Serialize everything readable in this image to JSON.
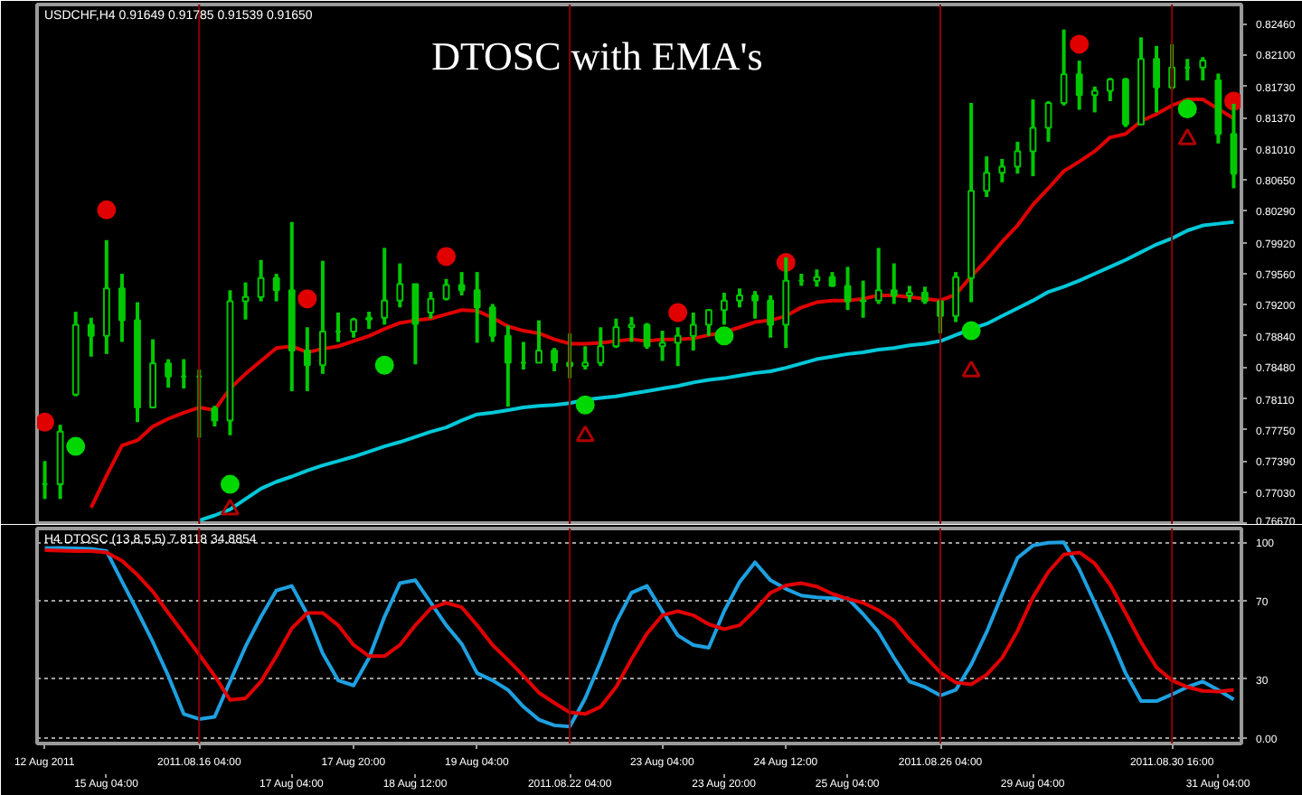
{
  "chart_data": [
    {
      "type": "candlestick",
      "title": "DTOSC with EMA's",
      "annotations": [
        "USDCHF,H4 0.91649 0.91785 0.91539 0.91650"
      ],
      "categories": [
        "12 Aug 2011",
        null,
        null,
        null,
        "15 Aug 04:00",
        null,
        null,
        null,
        null,
        null,
        "2011.08.16 04:00",
        null,
        null,
        null,
        null,
        null,
        "17 Aug 04:00",
        null,
        null,
        null,
        "17 Aug 20:00",
        null,
        null,
        null,
        "18 Aug 12:00",
        null,
        null,
        null,
        "19 Aug 04:00",
        null,
        null,
        null,
        null,
        null,
        "2011.08.22 04:00",
        null,
        null,
        null,
        null,
        null,
        "23 Aug 04:00",
        null,
        null,
        null,
        "23 Aug 20:00",
        null,
        null,
        null,
        "24 Aug 12:00",
        null,
        null,
        null,
        "25 Aug 04:00",
        null,
        null,
        null,
        null,
        null,
        "2011.08.26 04:00",
        null,
        null,
        null,
        null,
        null,
        "29 Aug 04:00",
        null,
        null,
        null,
        null,
        null,
        null,
        null,
        null,
        "2011.08.30 16:00",
        null,
        null,
        "31 Aug 04:00",
        null
      ],
      "color": "#00c800",
      "ohlc": [
        [
          0.7712,
          0.7739,
          0.7695,
          0.7712
        ],
        [
          0.7712,
          0.7781,
          0.7695,
          0.7773
        ],
        [
          0.7816,
          0.7912,
          0.7814,
          0.7897
        ],
        [
          0.7897,
          0.7905,
          0.786,
          0.7884
        ],
        [
          0.7884,
          0.7995,
          0.7863,
          0.7939
        ],
        [
          0.7939,
          0.7956,
          0.7877,
          0.7902
        ],
        [
          0.7902,
          0.7923,
          0.7784,
          0.7801
        ],
        [
          0.7801,
          0.788,
          0.78,
          0.7852
        ],
        [
          0.7852,
          0.7857,
          0.7824,
          0.7837
        ],
        [
          0.7837,
          0.7857,
          0.7823,
          0.7837
        ],
        [
          0.7837,
          0.7845,
          0.7766,
          0.7837
        ],
        [
          0.78,
          0.7803,
          0.7779,
          0.7786
        ],
        [
          0.7786,
          0.7937,
          0.7769,
          0.7924
        ],
        [
          0.7924,
          0.7946,
          0.7903,
          0.7929
        ],
        [
          0.7929,
          0.7972,
          0.7924,
          0.7951
        ],
        [
          0.7951,
          0.7956,
          0.7924,
          0.7937
        ],
        [
          0.7937,
          0.8016,
          0.782,
          0.7867
        ],
        [
          0.7867,
          0.7894,
          0.782,
          0.785
        ],
        [
          0.785,
          0.7971,
          0.784,
          0.7889
        ],
        [
          0.7889,
          0.7911,
          0.7877,
          0.7889
        ],
        [
          0.7889,
          0.7905,
          0.7882,
          0.7903
        ],
        [
          0.7903,
          0.7912,
          0.7892,
          0.7905
        ],
        [
          0.7905,
          0.7986,
          0.7897,
          0.7925
        ],
        [
          0.7925,
          0.7968,
          0.7917,
          0.7944
        ],
        [
          0.7944,
          0.7944,
          0.7851,
          0.7898
        ],
        [
          0.7911,
          0.7935,
          0.7904,
          0.7927
        ],
        [
          0.7927,
          0.795,
          0.7925,
          0.7943
        ],
        [
          0.7943,
          0.7958,
          0.7931,
          0.7937
        ],
        [
          0.7937,
          0.7958,
          0.7876,
          0.7917
        ],
        [
          0.7917,
          0.7921,
          0.7877,
          0.7884
        ],
        [
          0.7884,
          0.7896,
          0.7802,
          0.7853
        ],
        [
          0.7853,
          0.7877,
          0.7845,
          0.7853
        ],
        [
          0.7853,
          0.7902,
          0.7853,
          0.7867
        ],
        [
          0.7867,
          0.787,
          0.7843,
          0.7853
        ],
        [
          0.7853,
          0.7887,
          0.7835,
          0.7849
        ],
        [
          0.7849,
          0.7872,
          0.7845,
          0.7853
        ],
        [
          0.7853,
          0.7894,
          0.7849,
          0.7872
        ],
        [
          0.7872,
          0.7904,
          0.787,
          0.7894
        ],
        [
          0.7894,
          0.7906,
          0.7877,
          0.7897
        ],
        [
          0.7897,
          0.7899,
          0.7869,
          0.7872
        ],
        [
          0.7872,
          0.789,
          0.7855,
          0.7876
        ],
        [
          0.7876,
          0.7894,
          0.7849,
          0.7884
        ],
        [
          0.7884,
          0.7911,
          0.7867,
          0.7897
        ],
        [
          0.7897,
          0.7915,
          0.7884,
          0.7914
        ],
        [
          0.7914,
          0.7934,
          0.7897,
          0.7925
        ],
        [
          0.7925,
          0.7939,
          0.7917,
          0.7931
        ],
        [
          0.7931,
          0.7936,
          0.7904,
          0.7925
        ],
        [
          0.7925,
          0.7931,
          0.7882,
          0.7897
        ],
        [
          0.7897,
          0.7975,
          0.787,
          0.7948
        ],
        [
          0.7948,
          0.7956,
          0.7942,
          0.7948
        ],
        [
          0.7948,
          0.7961,
          0.7941,
          0.7952
        ],
        [
          0.7952,
          0.7958,
          0.7941,
          0.7942
        ],
        [
          0.7942,
          0.7964,
          0.7914,
          0.7924
        ],
        [
          0.7924,
          0.7948,
          0.7905,
          0.7925
        ],
        [
          0.7925,
          0.7986,
          0.7921,
          0.7937
        ],
        [
          0.7937,
          0.7968,
          0.7921,
          0.7931
        ],
        [
          0.7931,
          0.7942,
          0.7923,
          0.7934
        ],
        [
          0.7934,
          0.7941,
          0.7921,
          0.7924
        ],
        [
          0.7924,
          0.7925,
          0.7887,
          0.7907
        ],
        [
          0.7907,
          0.7958,
          0.79,
          0.7952
        ],
        [
          0.7951,
          0.8154,
          0.7923,
          0.8052
        ],
        [
          0.8052,
          0.8092,
          0.8045,
          0.8073
        ],
        [
          0.8073,
          0.8089,
          0.8062,
          0.808
        ],
        [
          0.808,
          0.8109,
          0.8072,
          0.8098
        ],
        [
          0.8098,
          0.8158,
          0.8069,
          0.8125
        ],
        [
          0.8125,
          0.8156,
          0.8109,
          0.8154
        ],
        [
          0.8154,
          0.8239,
          0.8151,
          0.8187
        ],
        [
          0.8187,
          0.8203,
          0.8146,
          0.8163
        ],
        [
          0.8163,
          0.8173,
          0.8143,
          0.8168
        ],
        [
          0.8168,
          0.8183,
          0.8156,
          0.8181
        ],
        [
          0.8181,
          0.8183,
          0.8126,
          0.8129
        ],
        [
          0.8129,
          0.823,
          0.8129,
          0.8205
        ],
        [
          0.8205,
          0.822,
          0.8143,
          0.8172
        ],
        [
          0.8172,
          0.8222,
          0.817,
          0.8195
        ],
        [
          0.8195,
          0.8205,
          0.818,
          0.8195
        ],
        [
          0.8195,
          0.8207,
          0.818,
          0.8203
        ],
        [
          0.818,
          0.8188,
          0.8107,
          0.8118
        ],
        [
          0.8118,
          0.8153,
          0.8055,
          0.8072
        ]
      ],
      "series": [
        {
          "type": "line",
          "color": "#e00000",
          "values": [
            null,
            null,
            null,
            0.7685,
            0.7722,
            0.7757,
            0.7763,
            0.7779,
            0.7788,
            0.7795,
            0.7801,
            0.7798,
            0.7823,
            0.784,
            0.7855,
            0.787,
            0.7872,
            0.7865,
            0.7869,
            0.7872,
            0.7878,
            0.7884,
            0.7892,
            0.7899,
            0.7902,
            0.7904,
            0.7909,
            0.7914,
            0.7913,
            0.7905,
            0.7895,
            0.789,
            0.7887,
            0.788,
            0.7875,
            0.7875,
            0.7876,
            0.7878,
            0.788,
            0.7878,
            0.788,
            0.788,
            0.7881,
            0.7885,
            0.7888,
            0.7894,
            0.79,
            0.7902,
            0.7907,
            0.7917,
            0.7923,
            0.7925,
            0.7925,
            0.7927,
            0.7931,
            0.7931,
            0.7929,
            0.7927,
            0.7925,
            0.7932,
            0.7953,
            0.7972,
            0.7993,
            0.8012,
            0.8036,
            0.8055,
            0.8075,
            0.8086,
            0.8098,
            0.8114,
            0.8118,
            0.8133,
            0.8141,
            0.8151,
            0.8158,
            0.8158,
            0.8147,
            0.8136
          ]
        },
        {
          "type": "line",
          "color": "#00c8d8",
          "values": [
            null,
            null,
            null,
            null,
            null,
            null,
            null,
            null,
            null,
            null,
            0.767,
            0.7676,
            0.7683,
            0.7695,
            0.7707,
            0.7715,
            0.7721,
            0.7728,
            0.7734,
            0.7739,
            0.7744,
            0.775,
            0.7756,
            0.7761,
            0.7767,
            0.7773,
            0.7778,
            0.7786,
            0.7793,
            0.7795,
            0.7798,
            0.7801,
            0.7803,
            0.7804,
            0.7806,
            0.781,
            0.7812,
            0.7814,
            0.7817,
            0.782,
            0.7823,
            0.7826,
            0.783,
            0.7833,
            0.7835,
            0.7838,
            0.7841,
            0.7843,
            0.7847,
            0.7852,
            0.7857,
            0.786,
            0.7863,
            0.7865,
            0.7868,
            0.787,
            0.7873,
            0.7875,
            0.7878,
            0.7885,
            0.7892,
            0.7898,
            0.7907,
            0.7916,
            0.7925,
            0.7935,
            0.7941,
            0.7948,
            0.7956,
            0.7964,
            0.7972,
            0.7981,
            0.799,
            0.7997,
            0.8006,
            0.8012,
            0.8014,
            0.8016
          ]
        },
        {
          "type": "scatter",
          "marker": "circle",
          "color": "#e00000",
          "values": [
            0.7784,
            null,
            null,
            null,
            0.803,
            null,
            null,
            null,
            null,
            null,
            null,
            null,
            null,
            null,
            null,
            null,
            null,
            0.7927,
            null,
            null,
            null,
            null,
            null,
            null,
            null,
            null,
            0.7976,
            null,
            null,
            null,
            null,
            null,
            null,
            null,
            null,
            null,
            null,
            null,
            null,
            null,
            null,
            0.7911,
            null,
            null,
            null,
            null,
            null,
            null,
            0.7969,
            null,
            null,
            null,
            null,
            null,
            null,
            null,
            null,
            null,
            null,
            null,
            null,
            null,
            null,
            null,
            null,
            null,
            null,
            0.8222,
            null,
            null,
            null,
            null,
            null,
            null,
            null,
            null,
            null,
            0.8156
          ]
        },
        {
          "type": "scatter",
          "marker": "circle",
          "color": "#00d800",
          "values": [
            null,
            null,
            0.7756,
            null,
            null,
            null,
            null,
            null,
            null,
            null,
            null,
            null,
            0.7712,
            null,
            null,
            null,
            null,
            null,
            null,
            null,
            null,
            null,
            0.785,
            null,
            null,
            null,
            null,
            null,
            null,
            null,
            null,
            null,
            null,
            null,
            null,
            0.7804,
            null,
            null,
            null,
            null,
            null,
            null,
            null,
            null,
            0.7884,
            null,
            null,
            null,
            null,
            null,
            null,
            null,
            null,
            null,
            null,
            null,
            null,
            null,
            null,
            null,
            0.789,
            null,
            null,
            null,
            null,
            null,
            null,
            null,
            null,
            null,
            null,
            null,
            null,
            null,
            0.8147,
            null,
            null,
            null
          ]
        },
        {
          "type": "scatter",
          "marker": "triangle",
          "color": "#b00000",
          "values": [
            null,
            null,
            null,
            null,
            null,
            null,
            null,
            null,
            null,
            null,
            null,
            null,
            0.7683,
            null,
            null,
            null,
            null,
            null,
            null,
            null,
            null,
            null,
            null,
            null,
            null,
            null,
            null,
            null,
            null,
            null,
            null,
            null,
            null,
            null,
            null,
            0.7768,
            null,
            null,
            null,
            null,
            null,
            null,
            null,
            null,
            null,
            null,
            null,
            null,
            null,
            null,
            null,
            null,
            null,
            null,
            null,
            null,
            null,
            null,
            null,
            null,
            0.7843,
            null,
            null,
            null,
            null,
            null,
            null,
            null,
            null,
            null,
            null,
            null,
            null,
            null,
            0.8112,
            null,
            null,
            null
          ]
        }
      ],
      "ylim": [
        0.7665,
        0.8268
      ],
      "yticks": [
        {
          "value": 0.8246,
          "label": "0.82460"
        },
        {
          "value": 0.821,
          "label": "0.82100"
        },
        {
          "value": 0.8173,
          "label": "0.81730"
        },
        {
          "value": 0.8137,
          "label": "0.81370"
        },
        {
          "value": 0.8101,
          "label": "0.81010"
        },
        {
          "value": 0.8065,
          "label": "0.80650"
        },
        {
          "value": 0.8029,
          "label": "0.80290"
        },
        {
          "value": 0.7992,
          "label": "0.79920"
        },
        {
          "value": 0.7956,
          "label": "0.79560"
        },
        {
          "value": 0.792,
          "label": "0.79200"
        },
        {
          "value": 0.7884,
          "label": "0.78840"
        },
        {
          "value": 0.7848,
          "label": "0.78480"
        },
        {
          "value": 0.7811,
          "label": "0.78110"
        },
        {
          "value": 0.7775,
          "label": "0.77750"
        },
        {
          "value": 0.7739,
          "label": "0.77390"
        },
        {
          "value": 0.7703,
          "label": "0.77030"
        },
        {
          "value": 0.7667,
          "label": "0.76670"
        }
      ],
      "tick_labels": "y",
      "ref_lines": [
        {
          "axis": "x",
          "value": "2011.08.16 04:00",
          "color": "#8b0000"
        },
        {
          "axis": "x",
          "value": "2011.08.22 04:00",
          "color": "#8b0000"
        },
        {
          "axis": "x",
          "value": "2011.08.26 04:00",
          "color": "#8b0000"
        },
        {
          "axis": "x",
          "value": "2011.08.30 16:00",
          "color": "#8b0000"
        }
      ]
    },
    {
      "type": "line",
      "annotations": [
        "H4 DTOSC (13,8,5,5) 7.8118 34.8854"
      ],
      "categories": [
        "12 Aug 2011",
        null,
        null,
        null,
        "15 Aug 04:00",
        null,
        null,
        null,
        null,
        null,
        "2011.08.16 04:00",
        null,
        null,
        null,
        null,
        null,
        "17 Aug 04:00",
        null,
        null,
        null,
        "17 Aug 20:00",
        null,
        null,
        null,
        "18 Aug 12:00",
        null,
        null,
        null,
        "19 Aug 04:00",
        null,
        null,
        null,
        null,
        null,
        "2011.08.22 04:00",
        null,
        null,
        null,
        null,
        null,
        "23 Aug 04:00",
        null,
        null,
        null,
        "23 Aug 20:00",
        null,
        null,
        null,
        "24 Aug 12:00",
        null,
        null,
        null,
        "25 Aug 04:00",
        null,
        null,
        null,
        null,
        null,
        "2011.08.26 04:00",
        null,
        null,
        null,
        null,
        null,
        "29 Aug 04:00",
        null,
        null,
        null,
        null,
        null,
        null,
        null,
        null,
        "2011.08.30 16:00",
        null,
        null,
        "31 Aug 04:00",
        null
      ],
      "series": [
        {
          "color": "#1ea0e0",
          "values": [
            96.9,
            97.1,
            96.8,
            96.6,
            95.4,
            79.9,
            64.7,
            48.9,
            31.6,
            12.1,
            9.5,
            10.6,
            28.7,
            46.6,
            61.8,
            75.3,
            77.6,
            63.2,
            43.1,
            29.3,
            26.7,
            40.8,
            61.8,
            79.0,
            80.5,
            69.0,
            57.5,
            48.0,
            33.0,
            29.3,
            24.4,
            15.8,
            9.2,
            6.3,
            5.7,
            20.1,
            38.8,
            58.9,
            74.1,
            77.6,
            64.7,
            52.3,
            47.4,
            46.0,
            64.7,
            79.6,
            89.7,
            80.5,
            76.1,
            72.7,
            71.8,
            71.3,
            71.3,
            63.2,
            54.0,
            40.8,
            28.7,
            25.9,
            21.6,
            24.4,
            37.4,
            54.0,
            73.3,
            92.0,
            98.3,
            99.7,
            100.0,
            86.2,
            69.0,
            51.7,
            33.0,
            18.7,
            18.7,
            22.1,
            25.9,
            28.7,
            24.4,
            19.5
          ]
        },
        {
          "color": "#e00000",
          "values": [
            95.9,
            95.7,
            95.5,
            95.4,
            94.8,
            90.5,
            83.3,
            74.7,
            63.8,
            53.2,
            42.5,
            31.6,
            19.3,
            20.1,
            28.7,
            41.7,
            56.0,
            63.8,
            63.8,
            57.5,
            47.4,
            41.7,
            41.7,
            47.4,
            57.5,
            66.1,
            69.0,
            66.7,
            57.5,
            47.4,
            39.7,
            31.6,
            23.0,
            17.8,
            12.9,
            12.1,
            15.8,
            25.9,
            40.2,
            53.2,
            62.6,
            64.7,
            62.6,
            58.0,
            55.5,
            57.5,
            65.2,
            74.1,
            77.9,
            79.0,
            77.3,
            73.6,
            71.0,
            69.0,
            65.2,
            59.8,
            50.3,
            41.7,
            33.3,
            28.2,
            27.3,
            32.2,
            40.8,
            54.6,
            71.8,
            84.8,
            93.7,
            94.8,
            89.1,
            78.2,
            63.8,
            48.9,
            35.9,
            29.3,
            25.9,
            23.9,
            23.6,
            24.4
          ]
        }
      ],
      "ylim": [
        -3,
        107
      ],
      "yticks": [
        {
          "value": 0,
          "label": "0.00"
        },
        30,
        70,
        100
      ],
      "grid": "y",
      "ref_lines": [
        {
          "axis": "x",
          "value": "2011.08.16 04:00",
          "color": "#8b0000"
        },
        {
          "axis": "x",
          "value": "2011.08.22 04:00",
          "color": "#8b0000"
        },
        {
          "axis": "x",
          "value": "2011.08.26 04:00",
          "color": "#8b0000"
        },
        {
          "axis": "x",
          "value": "2011.08.30 16:00",
          "color": "#8b0000"
        }
      ]
    }
  ]
}
